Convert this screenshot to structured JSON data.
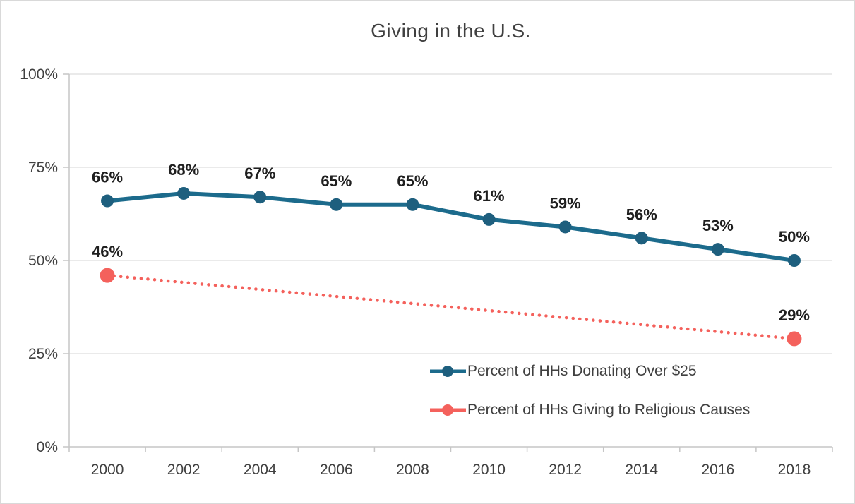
{
  "window": {
    "background": "#FFFFFF",
    "border_color": "#D9D9D9"
  },
  "chart_data": {
    "type": "line",
    "title": "Giving in the U.S.",
    "categories": [
      "2000",
      "2002",
      "2004",
      "2006",
      "2008",
      "2010",
      "2012",
      "2014",
      "2016",
      "2018"
    ],
    "series": [
      {
        "name": "Percent of HHs Donating Over $25",
        "color": "#1C6B8C",
        "marker_color": "#1E5F7E",
        "line_style": "solid",
        "values": [
          66,
          68,
          67,
          65,
          65,
          61,
          59,
          56,
          53,
          50
        ]
      },
      {
        "name": "Percent of HHs Giving to Religious Causes",
        "color": "#F4615C",
        "marker_color": "#F4615C",
        "line_style": "dotted",
        "values": [
          46,
          null,
          null,
          null,
          null,
          null,
          null,
          null,
          null,
          29
        ]
      }
    ],
    "xlabel": "",
    "ylabel": "",
    "ylim": [
      0,
      100
    ],
    "yticks": [
      0,
      25,
      50,
      75,
      100
    ],
    "ytick_format": "{v}%",
    "data_label_format": "{v}%",
    "grid": true,
    "legend_position": "inside-bottom-right"
  },
  "styles": {
    "grid_color": "#E4E4E4",
    "axis_color": "#C6C6C6",
    "tick_color": "#C6C6C6",
    "tick_label_color": "#404040",
    "data_label_color": "#1F1F1F",
    "title_color": "#404040",
    "legend_text_color": "#404040"
  }
}
